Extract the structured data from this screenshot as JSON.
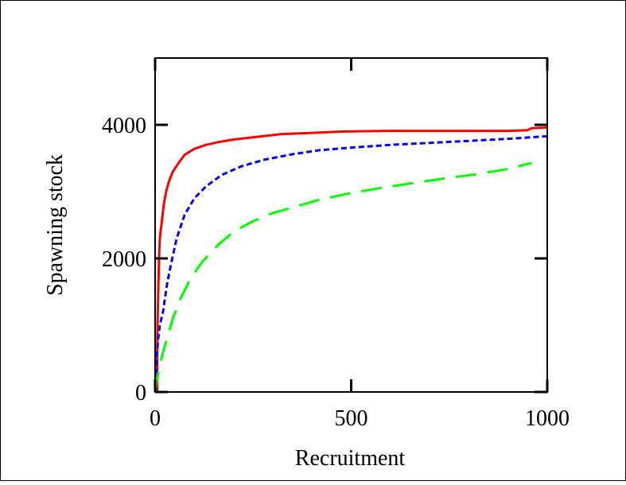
{
  "chart_data": {
    "type": "line",
    "title": "",
    "xlabel": "Recruitment",
    "ylabel": "Spawning stock",
    "xlim": [
      0,
      1000
    ],
    "ylim": [
      0,
      5000
    ],
    "x_ticks": [
      {
        "value": 0,
        "label": "0"
      },
      {
        "value": 500,
        "label": "500"
      },
      {
        "value": 1000,
        "label": "1000"
      }
    ],
    "y_ticks": [
      {
        "value": 0,
        "label": "0"
      },
      {
        "value": 2000,
        "label": "2000"
      },
      {
        "value": 4000,
        "label": "4000"
      }
    ],
    "grid": false,
    "legend": "none",
    "series": [
      {
        "color": "#ff0000",
        "dash": "solid",
        "points": [
          [
            5,
            0
          ],
          [
            5,
            500
          ],
          [
            6,
            1000
          ],
          [
            8,
            1500
          ],
          [
            10,
            2000
          ],
          [
            12,
            2300
          ],
          [
            18,
            2600
          ],
          [
            22,
            2800
          ],
          [
            28,
            3000
          ],
          [
            35,
            3150
          ],
          [
            45,
            3300
          ],
          [
            60,
            3430
          ],
          [
            75,
            3550
          ],
          [
            100,
            3640
          ],
          [
            130,
            3700
          ],
          [
            160,
            3740
          ],
          [
            200,
            3780
          ],
          [
            260,
            3820
          ],
          [
            320,
            3860
          ],
          [
            400,
            3880
          ],
          [
            480,
            3900
          ],
          [
            600,
            3910
          ],
          [
            700,
            3910
          ],
          [
            800,
            3910
          ],
          [
            900,
            3910
          ],
          [
            950,
            3920
          ],
          [
            960,
            3950
          ],
          [
            1000,
            3960
          ]
        ]
      },
      {
        "color": "#0000ff",
        "dash": "dotted",
        "points": [
          [
            3,
            0
          ],
          [
            4,
            400
          ],
          [
            5,
            600
          ],
          [
            8,
            800
          ],
          [
            12,
            1000
          ],
          [
            20,
            1200
          ],
          [
            30,
            1600
          ],
          [
            40,
            1900
          ],
          [
            55,
            2300
          ],
          [
            75,
            2650
          ],
          [
            100,
            2900
          ],
          [
            130,
            3080
          ],
          [
            170,
            3250
          ],
          [
            220,
            3380
          ],
          [
            280,
            3480
          ],
          [
            350,
            3560
          ],
          [
            420,
            3620
          ],
          [
            500,
            3660
          ],
          [
            600,
            3700
          ],
          [
            700,
            3730
          ],
          [
            800,
            3760
          ],
          [
            900,
            3790
          ],
          [
            1000,
            3830
          ]
        ]
      },
      {
        "color": "#00ff00",
        "dash": "dashed",
        "points": [
          [
            0,
            0
          ],
          [
            5,
            200
          ],
          [
            12,
            400
          ],
          [
            20,
            600
          ],
          [
            30,
            800
          ],
          [
            45,
            1100
          ],
          [
            65,
            1400
          ],
          [
            90,
            1700
          ],
          [
            120,
            1950
          ],
          [
            160,
            2200
          ],
          [
            200,
            2400
          ],
          [
            250,
            2560
          ],
          [
            300,
            2680
          ],
          [
            360,
            2780
          ],
          [
            420,
            2880
          ],
          [
            500,
            2980
          ],
          [
            580,
            3060
          ],
          [
            660,
            3130
          ],
          [
            740,
            3200
          ],
          [
            820,
            3260
          ],
          [
            900,
            3340
          ],
          [
            960,
            3430
          ]
        ]
      }
    ]
  }
}
